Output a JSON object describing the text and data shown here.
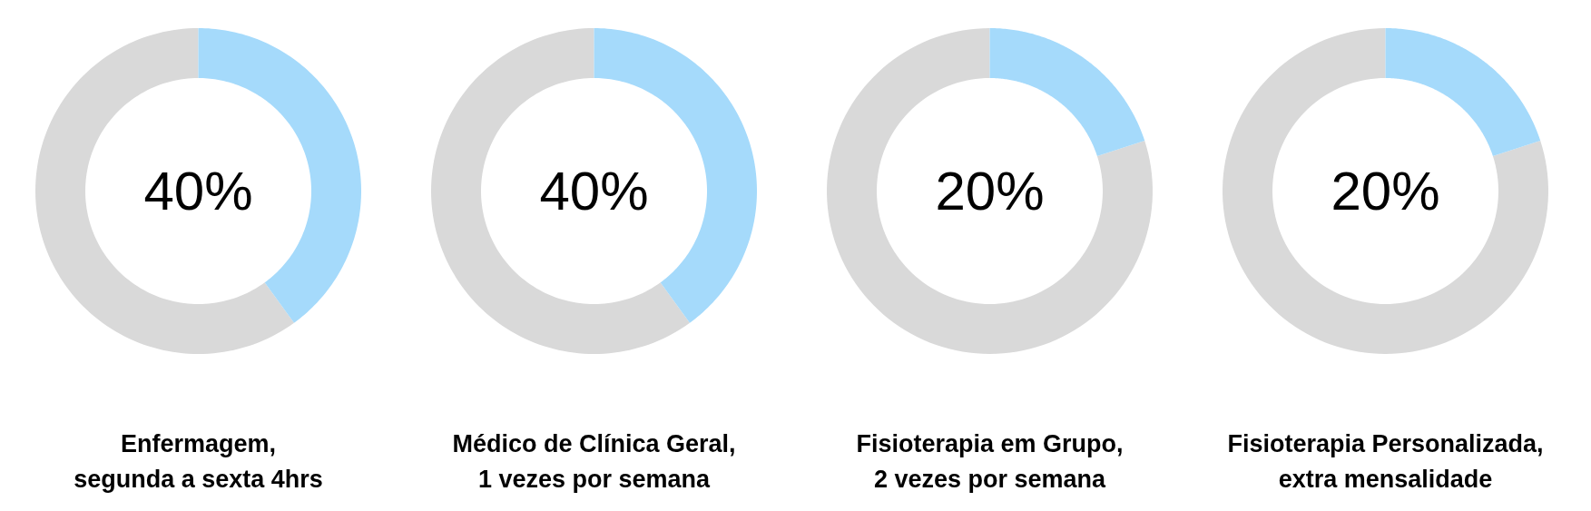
{
  "chart_data": [
    {
      "type": "donut",
      "title": "Enfermagem,\nsegunda a sexta 4hrs",
      "categories": [
        null,
        null
      ],
      "values": [
        40,
        60
      ],
      "colors": [
        "#a5dafb",
        "#d9d9d9"
      ],
      "annotations": [
        "40%"
      ]
    },
    {
      "type": "donut",
      "title": "Médico de Clínica Geral,\n1 vezes por semana",
      "categories": [
        null,
        null
      ],
      "values": [
        40,
        60
      ],
      "colors": [
        "#a5dafb",
        "#d9d9d9"
      ],
      "annotations": [
        "40%"
      ]
    },
    {
      "type": "donut",
      "title": "Fisioterapia em Grupo,\n2 vezes por semana",
      "categories": [
        null,
        null
      ],
      "values": [
        20,
        80
      ],
      "colors": [
        "#a5dafb",
        "#d9d9d9"
      ],
      "annotations": [
        "20%"
      ]
    },
    {
      "type": "donut",
      "title": "Fisioterapia Personalizada,\nextra mensalidade",
      "categories": [
        null,
        null
      ],
      "values": [
        20,
        80
      ],
      "colors": [
        "#a5dafb",
        "#d9d9d9"
      ],
      "annotations": [
        "20%"
      ]
    }
  ]
}
